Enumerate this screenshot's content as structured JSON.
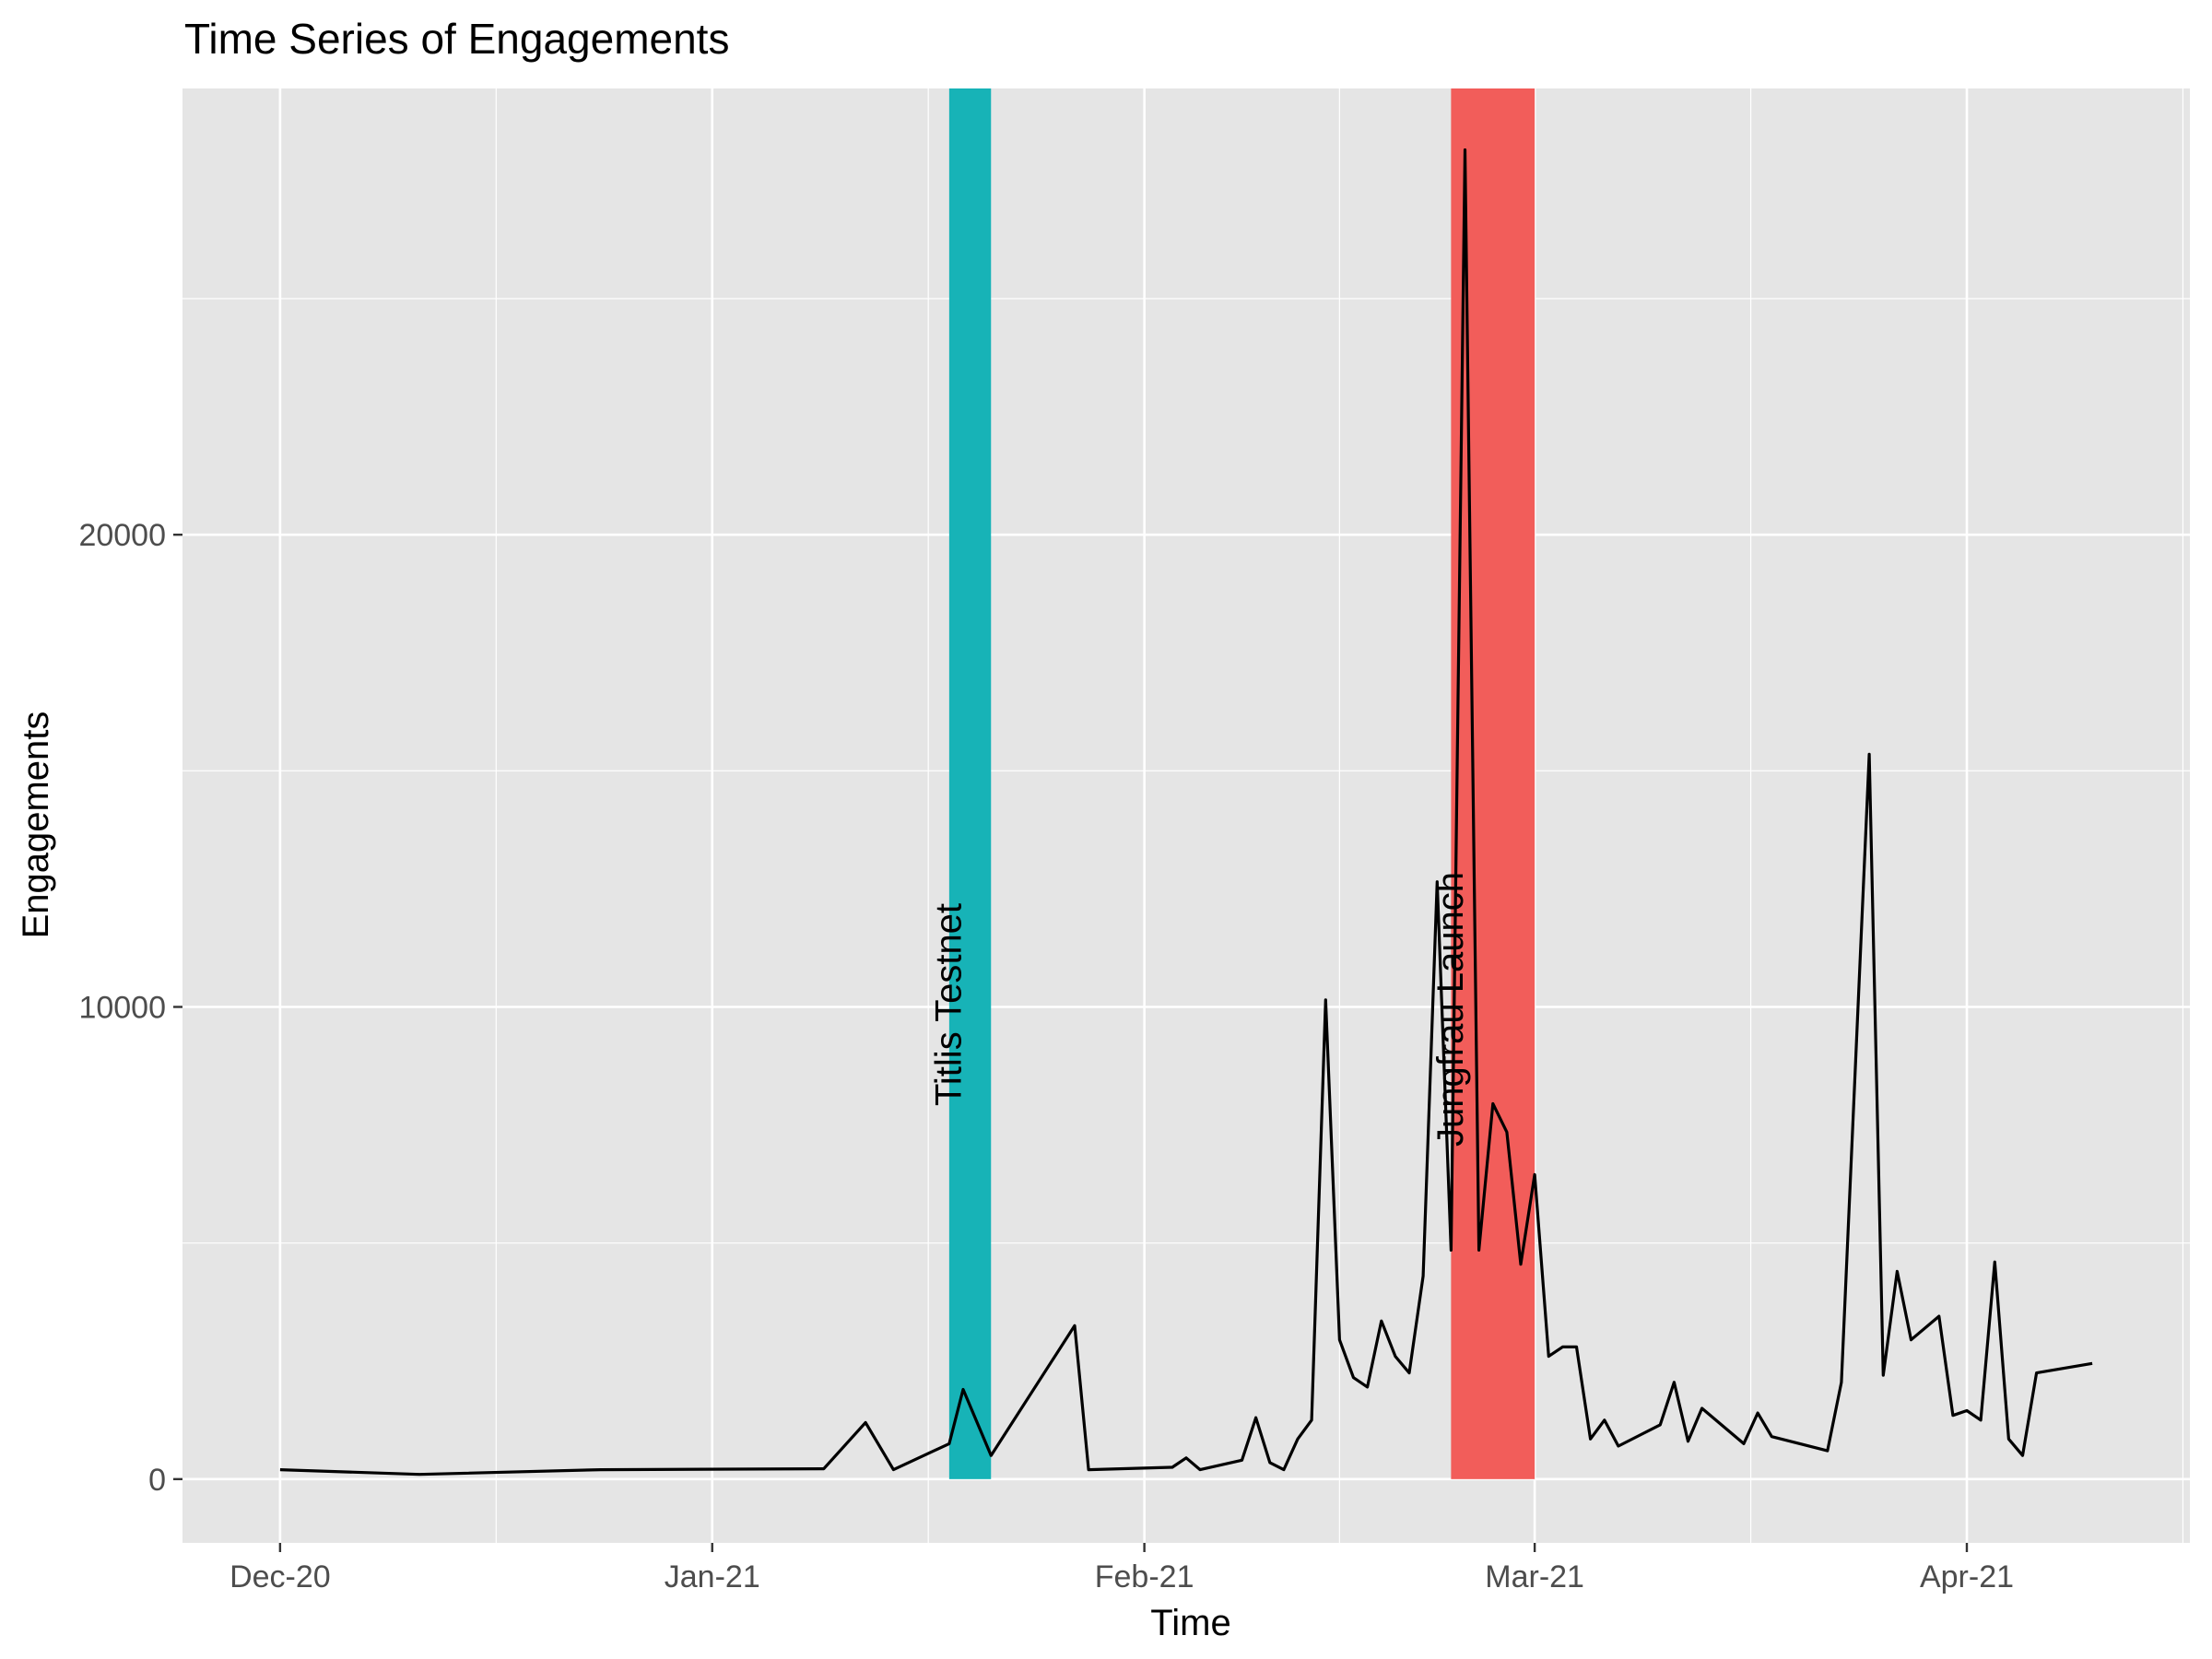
{
  "chart_data": {
    "type": "line",
    "title": "Time Series of Engagements",
    "xlabel": "Time",
    "ylabel": "Engagements",
    "x_ticks": [
      {
        "date": "2020-12-01",
        "label": "Dec-20"
      },
      {
        "date": "2021-01-01",
        "label": "Jan-21"
      },
      {
        "date": "2021-02-01",
        "label": "Feb-21"
      },
      {
        "date": "2021-03-01",
        "label": "Mar-21"
      },
      {
        "date": "2021-04-01",
        "label": "Apr-21"
      }
    ],
    "y_ticks": [
      0,
      10000,
      20000
    ],
    "xlim": [
      "2020-11-24",
      "2021-04-17"
    ],
    "ylim": [
      -1350,
      29450
    ],
    "grid": true,
    "colors": {
      "panel": "#e5e5e5",
      "grid": "#ffffff",
      "line": "#000000",
      "event_a": "#17b3b7",
      "event_b": "#f25d5a"
    },
    "events": [
      {
        "label": "Titlis Testnet",
        "start": "2021-01-18",
        "end": "2021-01-21",
        "color": "#17b3b7"
      },
      {
        "label": "Jungfrau Launch",
        "start": "2021-02-23",
        "end": "2021-03-01",
        "color": "#f25d5a"
      }
    ],
    "series": [
      {
        "x": [
          "2020-12-01",
          "2020-12-11",
          "2020-12-24",
          "2021-01-09",
          "2021-01-12",
          "2021-01-14",
          "2021-01-18",
          "2021-01-19",
          "2021-01-21",
          "2021-01-27",
          "2021-01-28",
          "2021-02-03",
          "2021-02-04",
          "2021-02-05",
          "2021-02-08",
          "2021-02-09",
          "2021-02-10",
          "2021-02-11",
          "2021-02-12",
          "2021-02-13",
          "2021-02-14",
          "2021-02-15",
          "2021-02-16",
          "2021-02-17",
          "2021-02-18",
          "2021-02-19",
          "2021-02-20",
          "2021-02-21",
          "2021-02-22",
          "2021-02-23",
          "2021-02-24",
          "2021-02-25",
          "2021-02-26",
          "2021-02-27",
          "2021-02-28",
          "2021-03-01",
          "2021-03-02",
          "2021-03-03",
          "2021-03-04",
          "2021-03-05",
          "2021-03-06",
          "2021-03-07",
          "2021-03-10",
          "2021-03-11",
          "2021-03-12",
          "2021-03-13",
          "2021-03-15",
          "2021-03-16",
          "2021-03-17",
          "2021-03-18",
          "2021-03-22",
          "2021-03-23",
          "2021-03-25",
          "2021-03-26",
          "2021-03-27",
          "2021-03-28",
          "2021-03-30",
          "2021-03-31",
          "2021-04-01",
          "2021-04-02",
          "2021-04-03",
          "2021-04-04",
          "2021-04-05",
          "2021-04-06",
          "2021-04-10"
        ],
        "values": [
          200,
          100,
          200,
          220,
          1200,
          200,
          750,
          1900,
          500,
          3250,
          200,
          250,
          450,
          200,
          400,
          1300,
          350,
          200,
          850,
          1250,
          10150,
          2950,
          2150,
          1950,
          3350,
          2600,
          2250,
          4300,
          12650,
          4850,
          28150,
          4850,
          7950,
          7350,
          4550,
          6450,
          2600,
          2800,
          2800,
          850,
          1250,
          700,
          1150,
          2050,
          800,
          1500,
          1000,
          750,
          1400,
          900,
          600,
          2050,
          15350,
          2200,
          4400,
          2950,
          3450,
          1350,
          1450,
          1250,
          4600,
          850,
          500,
          2250,
          2450
        ]
      }
    ]
  }
}
